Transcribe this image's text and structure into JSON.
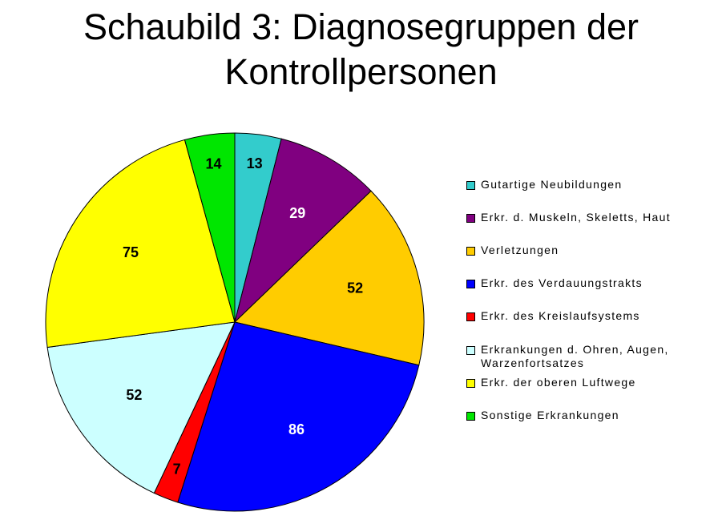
{
  "chart_data": {
    "type": "pie",
    "title": "Schaubild 3: Diagnosegruppen der Kontrollpersonen",
    "categories": [
      "Gutartige Neubildungen",
      "Erkr. d. Muskeln, Skeletts, Haut",
      "Verletzungen",
      "Erkr. des Verdauungstrakts",
      "Erkr. des Kreislaufsystems",
      "Erkrankungen d. Ohren, Augen, Warzenfortsatzes",
      "Erkr. der oberen Luftwege",
      "Sonstige Erkrankungen"
    ],
    "values": [
      13,
      29,
      52,
      86,
      7,
      52,
      75,
      14
    ],
    "labels": [
      "13",
      "29",
      "52",
      "86",
      "7",
      "52",
      "75",
      "14"
    ],
    "colors": [
      "#33CCCC",
      "#800080",
      "#FFCC00",
      "#0000FF",
      "#FF0000",
      "#CCFFFF",
      "#FFFF00",
      "#00E600"
    ],
    "label_colors": [
      "#000000",
      "#FFFFFF",
      "#000000",
      "#FFFFFF",
      "#000000",
      "#000000",
      "#000000",
      "#000000"
    ],
    "legend_position": "right"
  }
}
